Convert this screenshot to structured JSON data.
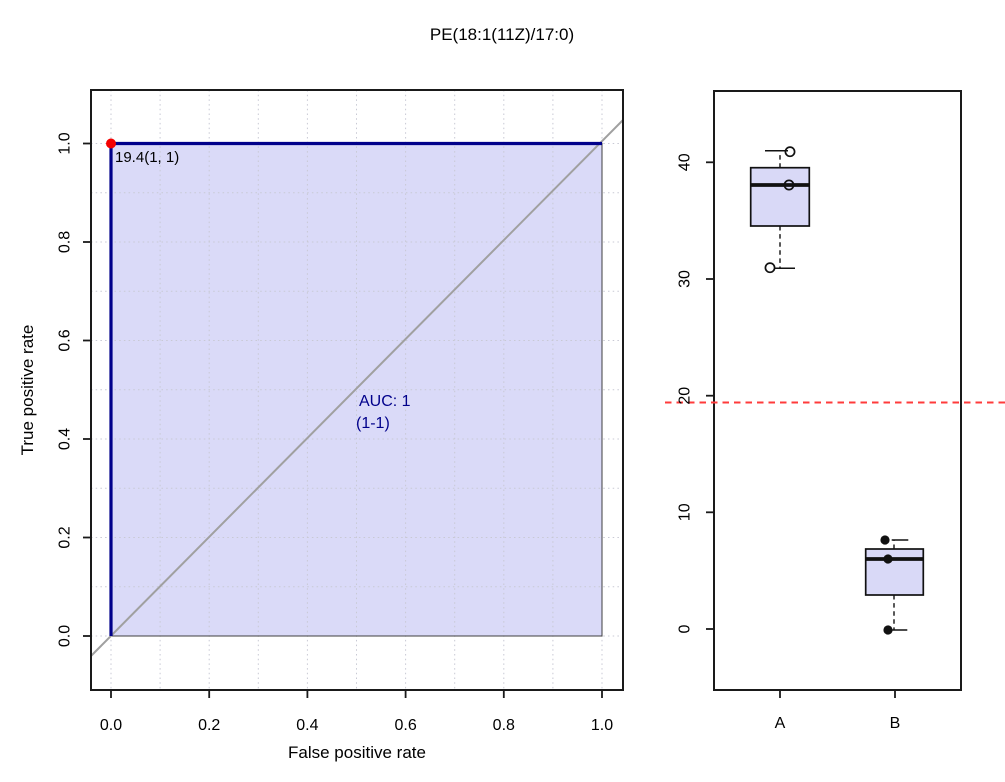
{
  "title": "PE(18:1(11Z)/17:0)",
  "colors": {
    "roc_line": "#00008B",
    "auc_fill": "#DADAF8",
    "diagonal_reference": "#A0A0A0",
    "optimal_point_marker": "#F40000",
    "threshold_line": "#FF3B3B",
    "box_fill": "#D9D9F7",
    "grid": "#C8C9D4"
  },
  "roc_panel": {
    "xlabel": "False positive rate",
    "ylabel": "True positive rate",
    "x_tick_labels": [
      "0.0",
      "0.2",
      "0.4",
      "0.6",
      "0.8",
      "1.0"
    ],
    "y_tick_labels": [
      "0.0",
      "0.2",
      "0.4",
      "0.6",
      "0.8",
      "1.0"
    ],
    "cutoff_label": "19.4(1, 1)",
    "auc_label": "AUC: 1",
    "auc_ci_label": "(1-1)"
  },
  "box_panel": {
    "y_tick_labels": [
      "0",
      "10",
      "20",
      "30",
      "40"
    ],
    "group_labels": [
      "A",
      "B"
    ]
  },
  "chart_data": [
    {
      "type": "line",
      "name": "ROC curve",
      "title": "PE(18:1(11Z)/17:0)",
      "xlabel": "False positive rate",
      "ylabel": "True positive rate",
      "xlim": [
        0,
        1
      ],
      "ylim": [
        0,
        1
      ],
      "x": [
        0,
        0,
        1
      ],
      "y": [
        0,
        1,
        1
      ],
      "auc": 1,
      "auc_ci": [
        1,
        1
      ],
      "auc_annotation": [
        "AUC: 1",
        "(1-1)"
      ],
      "optimal_cutoff": {
        "threshold": 19.4,
        "fpr": 0,
        "tpr": 1,
        "label": "19.4(1, 1)"
      },
      "area_fill": true,
      "diagonal_reference": true,
      "grid": true,
      "grid_step": 0.1,
      "legend_position": "none"
    },
    {
      "type": "box",
      "categories": [
        "A",
        "B"
      ],
      "series": [
        {
          "name": "A",
          "values": [
            31,
            38.2,
            41
          ],
          "median": 38.2,
          "q1": 34.6,
          "q3": 39.6,
          "whisker_low": 31,
          "whisker_high": 41,
          "marker": "open-circle"
        },
        {
          "name": "B",
          "values": [
            0,
            6.1,
            7.7
          ],
          "median": 6.1,
          "q1": 3.0,
          "q3": 6.9,
          "whisker_low": 0,
          "whisker_high": 7.7,
          "marker": "filled-circle"
        }
      ],
      "y_ticks": [
        0,
        10,
        20,
        30,
        40
      ],
      "ylim": [
        -4,
        46
      ],
      "threshold_line": {
        "y": 19.4,
        "color": "#FF3B3B",
        "style": "dashed"
      },
      "grid": false
    }
  ]
}
